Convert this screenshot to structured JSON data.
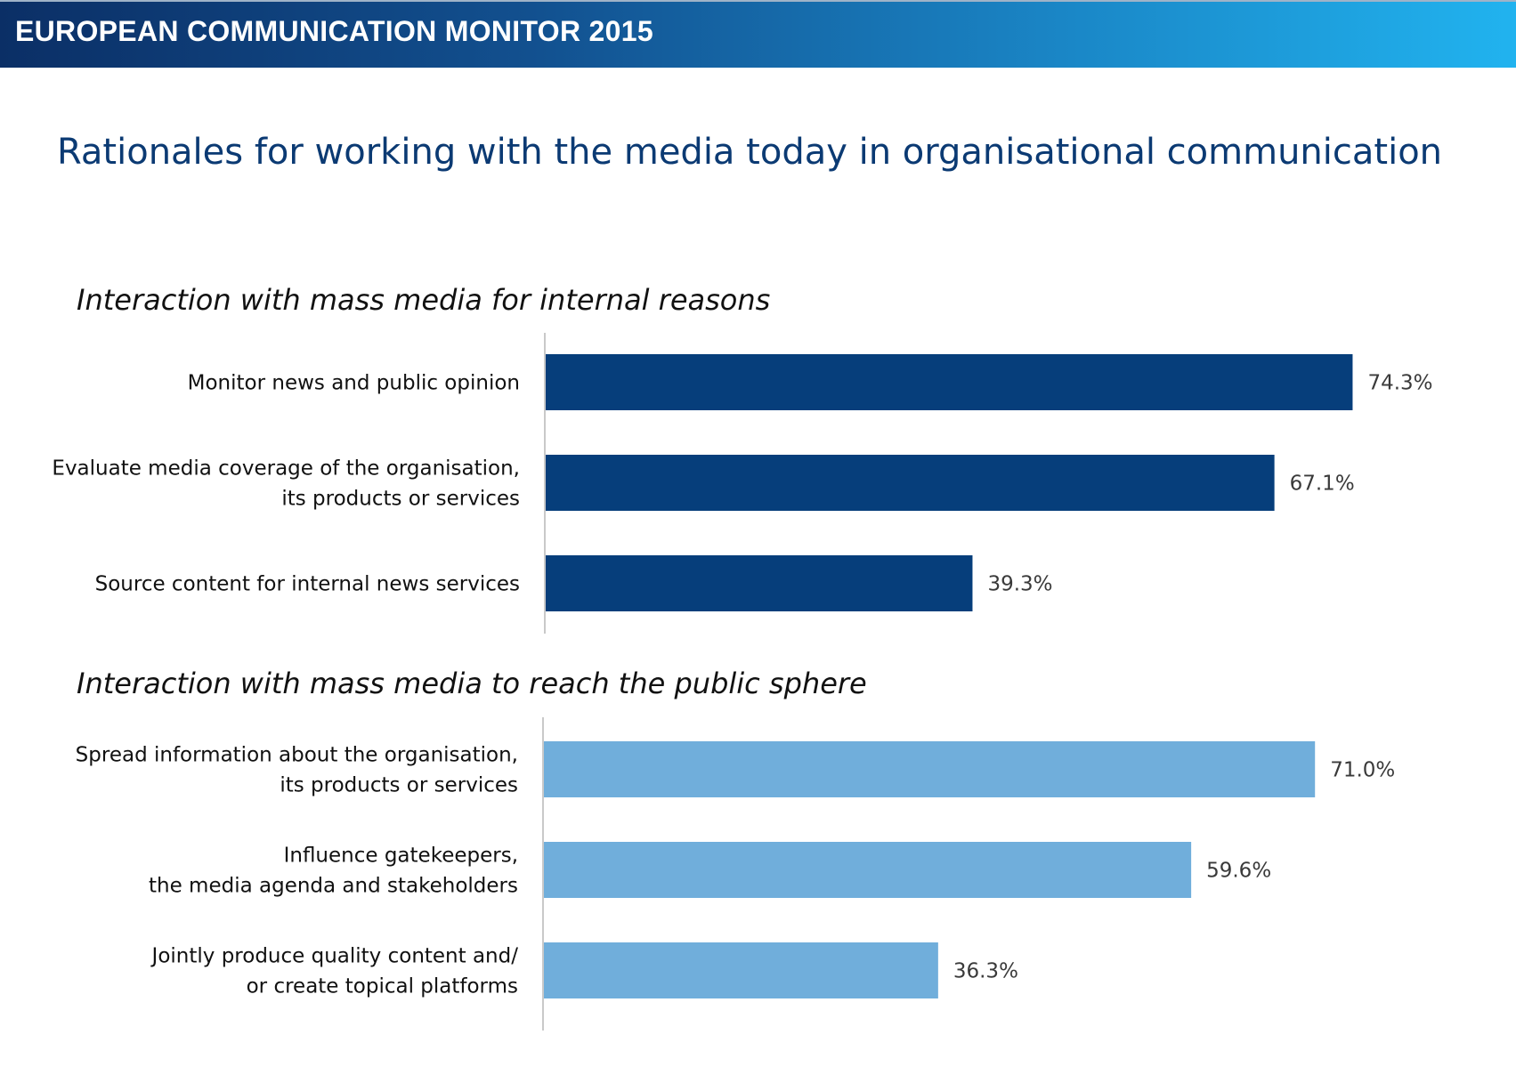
{
  "header": {
    "title": "EUROPEAN COMMUNICATION MONITOR 2015"
  },
  "page_title": "Rationales for working with the media today in organisational communication",
  "chart_data": [
    {
      "type": "bar",
      "orientation": "horizontal",
      "title": "Interaction with mass media for internal reasons",
      "categories": [
        [
          "Monitor news and public opinion"
        ],
        [
          "Evaluate media coverage of the organisation,",
          "its products or services"
        ],
        [
          "Source content for internal news services"
        ]
      ],
      "values": [
        74.3,
        67.1,
        39.3
      ],
      "value_labels": [
        "74.3%",
        "67.1%",
        "39.3%"
      ],
      "color": "#063e7b",
      "xlim": [
        0,
        100
      ],
      "grid": false
    },
    {
      "type": "bar",
      "orientation": "horizontal",
      "title": "Interaction with mass media to reach the public sphere",
      "categories": [
        [
          "Spread information about the organisation,",
          "its products or services"
        ],
        [
          "Influence gatekeepers,",
          "the media agenda and stakeholders"
        ],
        [
          "Jointly produce quality content and/",
          "or create topical platforms"
        ]
      ],
      "values": [
        71.0,
        59.6,
        36.3
      ],
      "value_labels": [
        "71.0%",
        "59.6%",
        "36.3%"
      ],
      "color": "#70aedb",
      "xlim": [
        0,
        100
      ],
      "grid": false
    }
  ]
}
